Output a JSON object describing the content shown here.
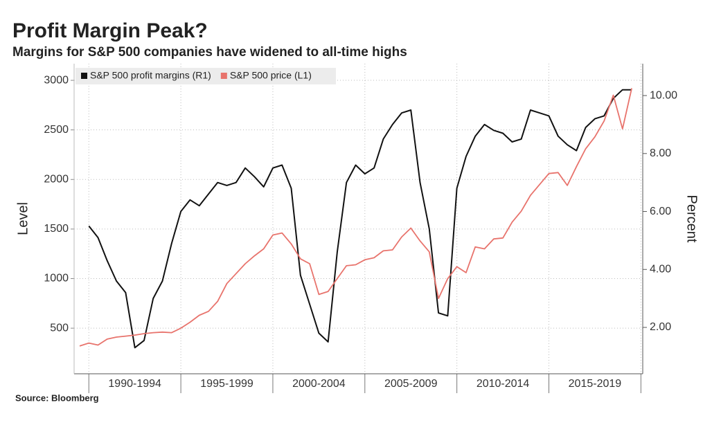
{
  "chart_data": {
    "type": "line",
    "title": "Profit Margin Peak?",
    "subtitle": "Margins for S&P 500 companies have widened to all-time highs",
    "source": "Source: Bloomberg",
    "ylabel": "Level",
    "y2label": "Percent",
    "categories": [
      "1990-1994",
      "1995-1999",
      "2000-2004",
      "2005-2009",
      "2010-2014",
      "2015-2019"
    ],
    "x": [
      1989.5,
      1990,
      1990.5,
      1991,
      1991.5,
      1992,
      1992.5,
      1993,
      1993.5,
      1994,
      1994.5,
      1995,
      1995.5,
      1996,
      1996.5,
      1997,
      1997.5,
      1998,
      1998.5,
      1999,
      1999.5,
      2000,
      2000.5,
      2001,
      2001.5,
      2002,
      2002.5,
      2003,
      2003.5,
      2004,
      2004.5,
      2005,
      2005.5,
      2006,
      2006.5,
      2007,
      2007.5,
      2008,
      2008.5,
      2009,
      2009.5,
      2010,
      2010.5,
      2011,
      2011.5,
      2012,
      2012.5,
      2013,
      2013.5,
      2014,
      2014.5,
      2015,
      2015.5,
      2016,
      2016.5,
      2017,
      2017.5,
      2018,
      2018.5,
      2019,
      2019.5
    ],
    "xlim": [
      1989.2,
      2020.1
    ],
    "xticks": [
      1990,
      1995,
      2000,
      2005,
      2010,
      2015,
      2020
    ],
    "ylim": [
      40,
      3168
    ],
    "yticks": [
      500,
      1000,
      1500,
      2000,
      2500,
      3000
    ],
    "y2lim": [
      0.4,
      11.1
    ],
    "y2ticks": [
      {
        "value": 2,
        "label": "2.00"
      },
      {
        "value": 4,
        "label": "4.00"
      },
      {
        "value": 6,
        "label": "6.00"
      },
      {
        "value": 8,
        "label": "8.00"
      },
      {
        "value": 10,
        "label": "10.00"
      }
    ],
    "grid": true,
    "legend": "top-left",
    "series": [
      {
        "name": "S&P 500 profit margins (R1)",
        "color": "#111111",
        "axis": "y2",
        "values": [
          null,
          5.5,
          5.1,
          4.3,
          3.6,
          3.2,
          1.3,
          1.55,
          3.0,
          3.6,
          4.9,
          6.0,
          6.4,
          6.2,
          6.6,
          7.0,
          6.9,
          7.0,
          7.5,
          7.2,
          6.85,
          7.5,
          7.6,
          6.8,
          3.8,
          2.8,
          1.8,
          1.5,
          4.6,
          7.0,
          7.6,
          7.3,
          7.5,
          8.5,
          9.0,
          9.4,
          9.5,
          7.0,
          5.4,
          2.5,
          2.4,
          6.8,
          7.9,
          8.6,
          9.0,
          8.8,
          8.7,
          8.4,
          8.5,
          9.5,
          9.4,
          9.3,
          8.6,
          8.3,
          8.1,
          8.9,
          9.2,
          9.3,
          9.9,
          10.2,
          10.2
        ]
      },
      {
        "name": "S&P 500 price (L1)",
        "color": "#e8736c",
        "axis": "y",
        "values": [
          320,
          350,
          330,
          390,
          410,
          420,
          430,
          445,
          455,
          460,
          455,
          500,
          560,
          630,
          670,
          770,
          950,
          1050,
          1150,
          1230,
          1300,
          1440,
          1460,
          1350,
          1200,
          1150,
          840,
          870,
          1000,
          1130,
          1140,
          1190,
          1210,
          1280,
          1290,
          1420,
          1510,
          1380,
          1270,
          800,
          1000,
          1120,
          1060,
          1320,
          1300,
          1400,
          1410,
          1570,
          1680,
          1840,
          1950,
          2060,
          2070,
          1940,
          2130,
          2310,
          2430,
          2590,
          2850,
          2510,
          2920
        ]
      }
    ]
  }
}
